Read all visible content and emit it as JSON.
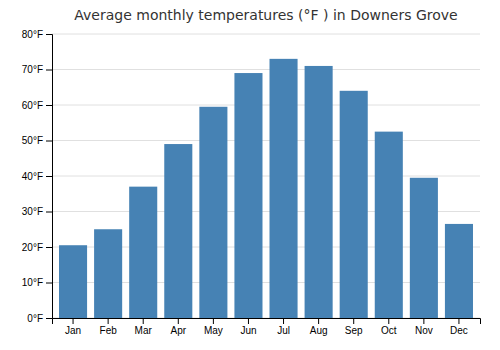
{
  "chart_data": {
    "type": "bar",
    "title": "Average monthly temperatures (°F ) in Downers Grove",
    "categories": [
      "Jan",
      "Feb",
      "Mar",
      "Apr",
      "May",
      "Jun",
      "Jul",
      "Aug",
      "Sep",
      "Oct",
      "Nov",
      "Dec"
    ],
    "values": [
      20.5,
      25.0,
      37.0,
      49.0,
      59.5,
      69.0,
      73.0,
      71.0,
      64.0,
      52.5,
      39.5,
      26.5
    ],
    "ylim": [
      0,
      80
    ],
    "yticks": [
      {
        "value": 0,
        "label": "0°F"
      },
      {
        "value": 10,
        "label": "10°F"
      },
      {
        "value": 20,
        "label": "20°F"
      },
      {
        "value": 30,
        "label": "30°F"
      },
      {
        "value": 40,
        "label": "40°F"
      },
      {
        "value": 50,
        "label": "50°F"
      },
      {
        "value": 60,
        "label": "60°F"
      },
      {
        "value": 70,
        "label": "70°F"
      },
      {
        "value": 80,
        "label": "80°F"
      }
    ],
    "grid": true
  }
}
